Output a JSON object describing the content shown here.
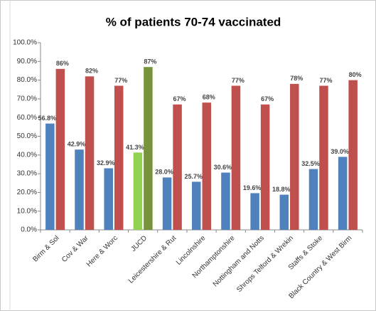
{
  "chart_data": {
    "type": "bar",
    "title": "% of patients 70-74  vaccinated",
    "categories": [
      "Birm & Sol",
      "Cov & War",
      "Here & Worc",
      "JUCD",
      "Leicestershire & Rut",
      "Lincolnshire",
      "Northamptonshire",
      "Nottingham and Notts",
      "Shrops Telford & Wrekin",
      "Staffs & Stoke",
      "Black Country & West Birm"
    ],
    "series": [
      {
        "color": "#4f81bd",
        "colors": [
          "#4f81bd",
          "#4f81bd",
          "#4f81bd",
          "#92d050",
          "#4f81bd",
          "#4f81bd",
          "#4f81bd",
          "#4f81bd",
          "#4f81bd",
          "#4f81bd",
          "#4f81bd"
        ],
        "values": [
          56.8,
          42.9,
          32.9,
          41.3,
          28.0,
          25.7,
          30.6,
          19.6,
          18.8,
          32.5,
          39.0
        ],
        "value_labels": [
          "56.8%",
          "42.9%",
          "32.9%",
          "41.3%",
          "28.0%",
          "25.7%",
          "30.6%",
          "19.6%",
          "18.8%",
          "32.5%",
          "39.0%"
        ]
      },
      {
        "color": "#c0504d",
        "colors": [
          "#c0504d",
          "#c0504d",
          "#c0504d",
          "#77933c",
          "#c0504d",
          "#c0504d",
          "#c0504d",
          "#c0504d",
          "#c0504d",
          "#c0504d",
          "#c0504d"
        ],
        "values": [
          86,
          82,
          77,
          87,
          67,
          68,
          77,
          67,
          78,
          77,
          80
        ],
        "value_labels": [
          "86%",
          "82%",
          "77%",
          "87%",
          "67%",
          "68%",
          "77%",
          "67%",
          "78%",
          "77%",
          "80%"
        ]
      }
    ],
    "ylim": [
      0,
      100
    ],
    "yticks": [
      {
        "value": 0,
        "label": "0.0%"
      },
      {
        "value": 10,
        "label": "10.0%"
      },
      {
        "value": 20,
        "label": "20.0%"
      },
      {
        "value": 30,
        "label": "30.0%"
      },
      {
        "value": 40,
        "label": "40.0%"
      },
      {
        "value": 50,
        "label": "50.0%"
      },
      {
        "value": 60,
        "label": "60.0%"
      },
      {
        "value": 70,
        "label": "70.0%"
      },
      {
        "value": 80,
        "label": "80.0%"
      },
      {
        "value": 90,
        "label": "90.0%"
      },
      {
        "value": 100,
        "label": "100.0%"
      }
    ],
    "grid": false
  }
}
